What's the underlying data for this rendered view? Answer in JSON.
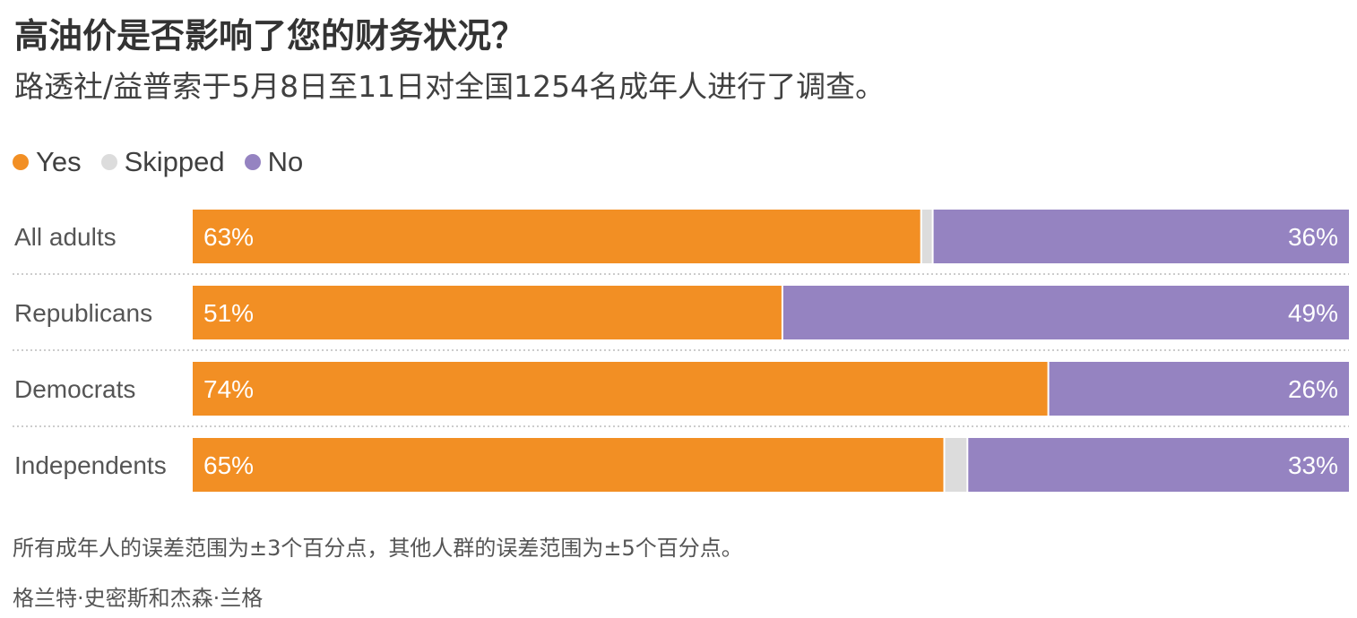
{
  "header": {
    "title": "高油价是否影响了您的财务状况？",
    "subtitle": "路透社/益普索于5月8日至11日对全国1254名成年人进行了调查。"
  },
  "legend": [
    {
      "label": "Yes",
      "color": "#f28f24"
    },
    {
      "label": "Skipped",
      "color": "#dcdcdc"
    },
    {
      "label": "No",
      "color": "#9583c1"
    }
  ],
  "chart_data": {
    "type": "bar",
    "orientation": "horizontal",
    "stacked": true,
    "categories": [
      "All adults",
      "Republicans",
      "Democrats",
      "Independents"
    ],
    "series": [
      {
        "name": "Yes",
        "color": "#f28f24",
        "values": [
          63,
          51,
          74,
          65
        ]
      },
      {
        "name": "Skipped",
        "color": "#dcdcdc",
        "values": [
          1,
          0,
          0,
          2
        ]
      },
      {
        "name": "No",
        "color": "#9583c1",
        "values": [
          36,
          49,
          26,
          33
        ]
      }
    ],
    "data_labels": {
      "yes": [
        "63%",
        "51%",
        "74%",
        "65%"
      ],
      "no": [
        "36%",
        "49%",
        "26%",
        "33%"
      ]
    },
    "xlim": [
      0,
      100
    ],
    "legend_position": "top-left"
  },
  "footer": {
    "note": "所有成年人的误差范围为±3个百分点，其他人群的误差范围为±5个百分点。",
    "credit": "格兰特·史密斯和杰森·兰格"
  }
}
